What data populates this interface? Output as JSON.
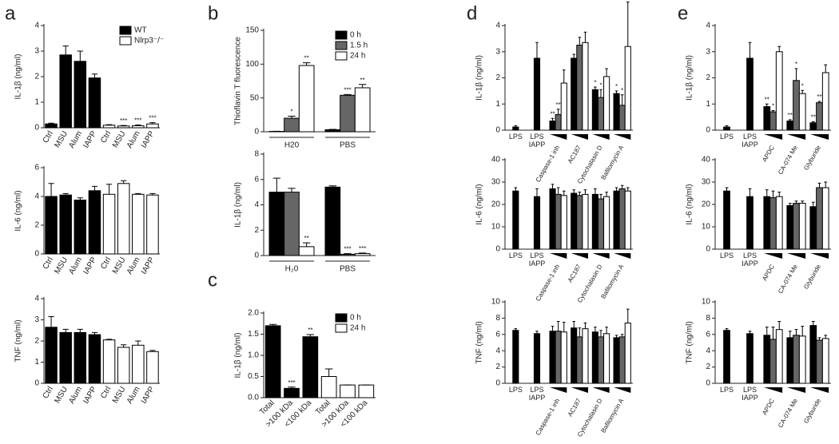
{
  "chart_data": [
    {
      "type": "bar",
      "panel": "a",
      "ylabel": "IL-1β (ng/ml)",
      "ylim": [
        0,
        4
      ],
      "yticks": [
        0,
        1,
        2,
        3,
        4
      ],
      "legend": "upper right",
      "categories": [
        "Ctrl",
        "MSU",
        "Alum",
        "IAPP",
        "Ctrl",
        "MSU",
        "Alum",
        "IAPP"
      ],
      "series": [
        {
          "name": "WT",
          "color": "#000000",
          "values": [
            0.15,
            2.85,
            2.6,
            1.95,
            null,
            null,
            null,
            null
          ],
          "errors": [
            0.03,
            0.35,
            0.4,
            0.15,
            null,
            null,
            null,
            null
          ]
        },
        {
          "name": "Nlrp3⁻/⁻",
          "color": "#ffffff",
          "values": [
            null,
            null,
            null,
            null,
            0.1,
            0.07,
            0.08,
            0.15
          ],
          "errors": [
            null,
            null,
            null,
            null,
            0.02,
            0.02,
            0.03,
            0.05
          ],
          "annotations": [
            null,
            null,
            null,
            null,
            null,
            "***",
            "***",
            "***"
          ]
        }
      ]
    },
    {
      "type": "bar",
      "ylabel": "IL-6 (ng/ml)",
      "ylim": [
        0,
        6
      ],
      "yticks": [
        0,
        2,
        4,
        6
      ],
      "categories": [
        "Ctrl",
        "MSU",
        "Alum",
        "IAPP",
        "Ctrl",
        "MSU",
        "Alum",
        "IAPP"
      ],
      "series": [
        {
          "color": "#000000",
          "values": [
            4.0,
            4.1,
            3.75,
            4.4,
            null,
            null,
            null,
            null
          ],
          "errors": [
            0.9,
            0.1,
            0.15,
            0.3,
            null,
            null,
            null,
            null
          ]
        },
        {
          "color": "#ffffff",
          "values": [
            null,
            null,
            null,
            null,
            4.15,
            4.9,
            4.15,
            4.1
          ],
          "errors": [
            null,
            null,
            null,
            null,
            0.7,
            0.2,
            0.05,
            0.1
          ]
        }
      ]
    },
    {
      "type": "bar",
      "ylabel": "TNF (ng/ml)",
      "ylim": [
        0,
        4
      ],
      "yticks": [
        0,
        1,
        2,
        3,
        4
      ],
      "categories": [
        "Ctrl",
        "MSU",
        "Alum",
        "IAPP",
        "Ctrl",
        "MSU",
        "Alum",
        "IAPP"
      ],
      "series": [
        {
          "color": "#000000",
          "values": [
            2.65,
            2.4,
            2.4,
            2.3,
            null,
            null,
            null,
            null
          ],
          "errors": [
            0.5,
            0.15,
            0.15,
            0.1,
            null,
            null,
            null,
            null
          ]
        },
        {
          "color": "#ffffff",
          "values": [
            null,
            null,
            null,
            null,
            2.05,
            1.7,
            1.8,
            1.5
          ],
          "errors": [
            null,
            null,
            null,
            null,
            0.03,
            0.12,
            0.2,
            0.05
          ]
        }
      ]
    },
    {
      "type": "bar",
      "panel": "b",
      "ylabel": "Thioflavin T fluorescence",
      "ylim": [
        0,
        150
      ],
      "yticks": [
        0,
        50,
        100,
        150
      ],
      "legend": "upper right",
      "categories": [
        "H20",
        "PBS"
      ],
      "series": [
        {
          "name": "0 h",
          "color": "#000000",
          "values": [
            0.5,
            3
          ],
          "errors": [
            0.3,
            0.5
          ]
        },
        {
          "name": "1.5 h",
          "color": "#666666",
          "values": [
            20,
            54
          ],
          "errors": [
            3,
            1
          ],
          "annotations": [
            "*",
            "***"
          ]
        },
        {
          "name": "24 h",
          "color": "#ffffff",
          "values": [
            98,
            65
          ],
          "errors": [
            4,
            5
          ],
          "annotations": [
            "**",
            "**"
          ]
        }
      ]
    },
    {
      "type": "bar",
      "ylabel": "IL-1β (ng/ml)",
      "ylim": [
        0,
        8
      ],
      "yticks": [
        0,
        2,
        4,
        6,
        8
      ],
      "categories": [
        "H₂0",
        "PBS"
      ],
      "series": [
        {
          "color": "#000000",
          "values": [
            5.0,
            5.4
          ],
          "errors": [
            1.1,
            0.1
          ]
        },
        {
          "color": "#666666",
          "values": [
            5.0,
            0.1
          ],
          "errors": [
            0.3,
            0.05
          ],
          "annotations": [
            null,
            "***"
          ]
        },
        {
          "color": "#ffffff",
          "values": [
            0.7,
            0.15
          ],
          "errors": [
            0.3,
            0.05
          ],
          "annotations": [
            "**",
            "***"
          ]
        }
      ]
    },
    {
      "type": "bar",
      "panel": "c",
      "ylabel": "IL-1β (ng/ml)",
      "ylim": [
        0,
        2
      ],
      "yticks": [
        {
          "value": 0,
          "label": "0.0"
        },
        {
          "value": 0.5,
          "label": "0.5"
        },
        {
          "value": 1,
          "label": "1.0"
        },
        {
          "value": 1.5,
          "label": "1.5"
        },
        {
          "value": 2,
          "label": "2.0"
        }
      ],
      "legend": "upper right",
      "categories": [
        "Total",
        ">100 kDa",
        "<100 kDa",
        "Total",
        ">100 kDa",
        "<100 kDa"
      ],
      "series": [
        {
          "name": "0 h",
          "color": "#000000",
          "values": [
            1.7,
            0.22,
            1.44,
            null,
            null,
            null
          ],
          "errors": [
            0.03,
            0.03,
            0.05,
            null,
            null,
            null
          ],
          "annotations": [
            null,
            "***",
            "**",
            null,
            null,
            null
          ]
        },
        {
          "name": "24 h",
          "color": "#ffffff",
          "values": [
            null,
            null,
            null,
            0.5,
            0.3,
            0.3
          ],
          "errors": [
            null,
            null,
            null,
            0.18,
            0,
            0
          ]
        }
      ]
    },
    {
      "type": "bar",
      "panel": "d",
      "ylabel": "IL-1β (ng/ml)",
      "ylim": [
        0,
        4
      ],
      "yticks": [
        0,
        1,
        2,
        3,
        4
      ],
      "categories": [
        "LPS",
        "LPS\nIAPP",
        "Caspase-1 inh",
        "AC187",
        "Cytochalasin D",
        "Bafilomycin A"
      ],
      "series": [
        {
          "color": "#000000",
          "values": [
            0.12,
            2.75,
            0.35,
            2.75,
            1.55,
            1.4
          ],
          "errors": [
            0.05,
            0.6,
            0.1,
            0.15,
            0.1,
            0.1
          ],
          "annotations": [
            null,
            null,
            "**",
            null,
            "*",
            "*"
          ]
        },
        {
          "color": "#666666",
          "values": [
            null,
            null,
            0.6,
            3.25,
            1.25,
            0.95
          ],
          "errors": [
            null,
            null,
            0.2,
            0.3,
            0.3,
            0.4
          ],
          "annotations": [
            null,
            null,
            "**",
            null,
            "*",
            "*"
          ]
        },
        {
          "color": "#ffffff",
          "values": [
            null,
            null,
            1.8,
            3.35,
            2.05,
            3.2
          ],
          "errors": [
            null,
            null,
            0.5,
            0.4,
            0.3,
            1.7
          ]
        }
      ]
    },
    {
      "type": "bar",
      "ylabel": "IL-6 (ng/ml)",
      "ylim": [
        0,
        40
      ],
      "yticks": [
        0,
        10,
        20,
        30,
        40
      ],
      "categories": [
        "LPS",
        "LPS\nIAPP",
        "Caspase-1 inh",
        "AC187",
        "Cytochalasin D",
        "Bafilomycin A"
      ],
      "series": [
        {
          "color": "#000000",
          "values": [
            26,
            23.5,
            27,
            25,
            24.5,
            26
          ],
          "errors": [
            1.5,
            3.5,
            2,
            1.5,
            2.5,
            1.5
          ]
        },
        {
          "color": "#666666",
          "values": [
            null,
            null,
            24.5,
            24,
            22.5,
            27
          ],
          "errors": [
            null,
            null,
            3,
            1.5,
            2,
            1.5
          ]
        },
        {
          "color": "#ffffff",
          "values": [
            null,
            null,
            24,
            24.5,
            23.5,
            26
          ],
          "errors": [
            null,
            null,
            2,
            2,
            2,
            1.5
          ]
        }
      ]
    },
    {
      "type": "bar",
      "ylabel": "TNF (ng/ml)",
      "ylim": [
        0,
        10
      ],
      "yticks": [
        0,
        2,
        4,
        6,
        8,
        10
      ],
      "categories": [
        "LPS",
        "LPS\nIAPP",
        "Caspase-1 inh",
        "AC187",
        "Cytochalasin D",
        "Bafilomycin A"
      ],
      "series": [
        {
          "color": "#000000",
          "values": [
            6.5,
            6.1,
            6.4,
            6.8,
            6.3,
            5.6
          ],
          "errors": [
            0.2,
            0.3,
            0.6,
            0.8,
            0.6,
            0.3
          ]
        },
        {
          "color": "#666666",
          "values": [
            null,
            null,
            6.4,
            5.7,
            5.7,
            5.7
          ],
          "errors": [
            null,
            null,
            1.2,
            1.1,
            0.8,
            0.3
          ]
        },
        {
          "color": "#ffffff",
          "values": [
            null,
            null,
            6.3,
            6.7,
            6.1,
            7.4
          ],
          "errors": [
            null,
            null,
            1.2,
            0.7,
            0.8,
            1.7
          ]
        }
      ]
    },
    {
      "type": "bar",
      "panel": "e",
      "ylabel": "IL-1β (ng/ml)",
      "ylim": [
        0,
        4
      ],
      "yticks": [
        0,
        1,
        2,
        3,
        4
      ],
      "categories": [
        "LPS",
        "LPS\nIAPP",
        "APDC",
        "CA-074 Me",
        "Glyburide"
      ],
      "series": [
        {
          "color": "#000000",
          "values": [
            0.12,
            2.75,
            0.9,
            0.35,
            0.28
          ],
          "errors": [
            0.05,
            0.6,
            0.1,
            0.05,
            0.04
          ],
          "annotations": [
            null,
            null,
            "**",
            "**",
            "**"
          ]
        },
        {
          "color": "#666666",
          "values": [
            null,
            null,
            0.7,
            1.9,
            1.05
          ],
          "errors": [
            null,
            null,
            0.05,
            0.45,
            0.05
          ],
          "annotations": [
            null,
            null,
            "*",
            "*",
            "**"
          ]
        },
        {
          "color": "#ffffff",
          "values": [
            null,
            null,
            3.0,
            1.4,
            2.2
          ],
          "errors": [
            null,
            null,
            0.2,
            0.12,
            0.3
          ],
          "annotations": [
            null,
            null,
            null,
            "*",
            null
          ]
        }
      ]
    },
    {
      "type": "bar",
      "ylabel": "IL-6 (ng/ml)",
      "ylim": [
        0,
        40
      ],
      "yticks": [
        0,
        10,
        20,
        30,
        40
      ],
      "categories": [
        "LPS",
        "LPS\nIAPP",
        "APDC",
        "CA-074 Me",
        "Glyburide"
      ],
      "series": [
        {
          "color": "#000000",
          "values": [
            26,
            23.5,
            23.5,
            19.5,
            19
          ],
          "errors": [
            1.5,
            3.5,
            3,
            1,
            2
          ]
        },
        {
          "color": "#666666",
          "values": [
            null,
            null,
            23,
            20.5,
            27.5
          ],
          "errors": [
            null,
            null,
            3,
            1,
            2
          ]
        },
        {
          "color": "#ffffff",
          "values": [
            null,
            null,
            23.5,
            20.5,
            27.5
          ],
          "errors": [
            null,
            null,
            2,
            1,
            2.5
          ]
        }
      ]
    },
    {
      "type": "bar",
      "ylabel": "TNF (ng/ml)",
      "ylim": [
        0,
        10
      ],
      "yticks": [
        0,
        2,
        4,
        6,
        8,
        10
      ],
      "categories": [
        "LPS",
        "LPS\nIAPP",
        "APDC",
        "CA-074 Me",
        "Glyburide"
      ],
      "series": [
        {
          "color": "#000000",
          "values": [
            6.5,
            6.1,
            5.9,
            5.6,
            7.1
          ],
          "errors": [
            0.2,
            0.3,
            1,
            0.8,
            0.5
          ]
        },
        {
          "color": "#666666",
          "values": [
            null,
            null,
            5.4,
            5.9,
            5.3
          ],
          "errors": [
            null,
            null,
            1.5,
            0.7,
            0.3
          ]
        },
        {
          "color": "#ffffff",
          "values": [
            null,
            null,
            6.6,
            5.8,
            5.5
          ],
          "errors": [
            null,
            null,
            1,
            1.2,
            0.4
          ]
        }
      ]
    }
  ]
}
